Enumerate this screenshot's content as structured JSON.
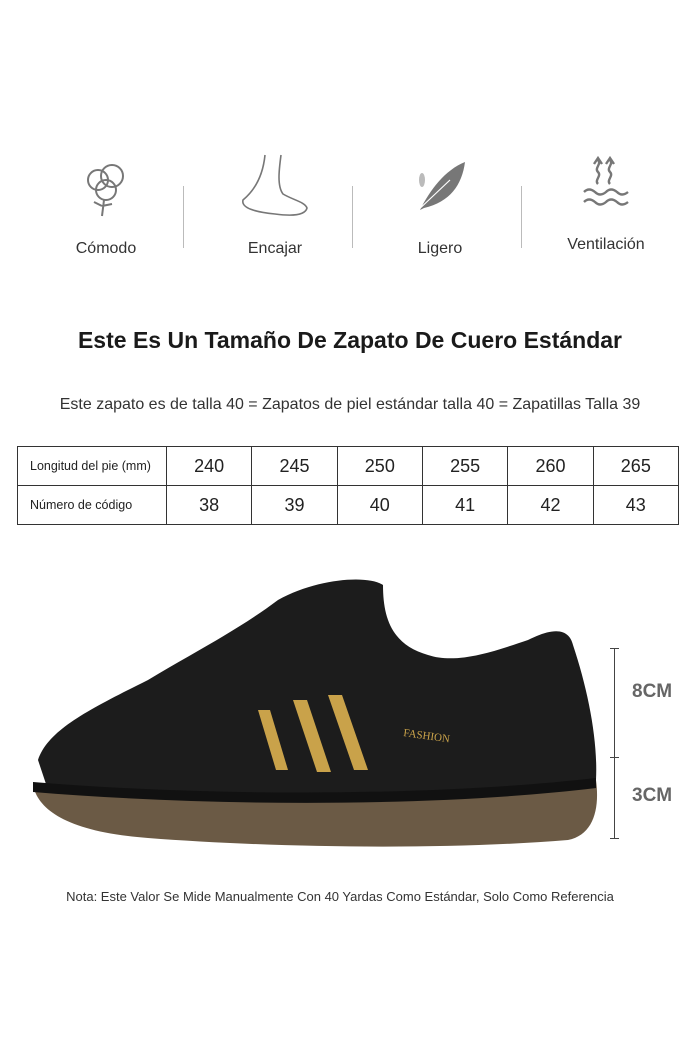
{
  "features": [
    {
      "label": "Cómodo",
      "icon": "cotton-icon"
    },
    {
      "label": "Encajar",
      "icon": "foot-icon"
    },
    {
      "label": "Ligero",
      "icon": "feather-icon"
    },
    {
      "label": "Ventilación",
      "icon": "ventilation-icon"
    }
  ],
  "title": "Este Es Un Tamaño De Zapato De Cuero Estándar",
  "equivalence": "Este zapato es de talla 40  =  Zapatos de piel estándar talla 40   =   Zapatillas Talla 39",
  "size_table": {
    "rows": [
      {
        "header": "Longitud del pie (mm)",
        "values": [
          "240",
          "245",
          "250",
          "255",
          "260",
          "265"
        ]
      },
      {
        "header": "Número de código",
        "values": [
          "38",
          "39",
          "40",
          "41",
          "42",
          "43"
        ]
      }
    ]
  },
  "shoe": {
    "brand_text": "FASHION",
    "upper_height": "8CM",
    "sole_height": "3CM",
    "colors": {
      "body": "#1a1a1a",
      "accent": "#c9a24a",
      "sole": "#6b5a45"
    }
  },
  "note": "Nota: Este Valor Se Mide Manualmente Con 40 Yardas Como Estándar, Solo Como Referencia"
}
